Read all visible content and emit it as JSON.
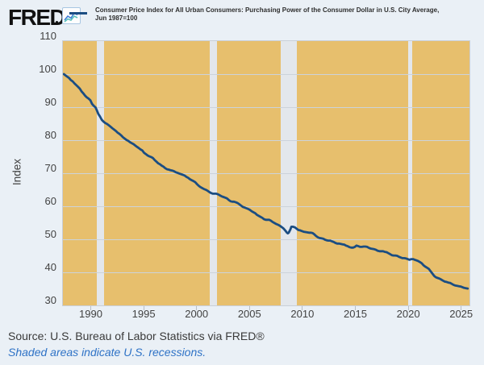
{
  "header": {
    "logo_text": "FRED",
    "series_title_line1": "Consumer Price Index for All Urban Consumers: Purchasing Power of the Consumer Dollar in U.S. City Average,",
    "series_title_line2": "Jun 1987=100"
  },
  "footer": {
    "source_text": "Source: U.S. Bureau of Labor Statistics via FRED®",
    "recession_note": "Shaded areas indicate U.S. recessions."
  },
  "chart_data": {
    "type": "line",
    "title": "Consumer Price Index for All Urban Consumers: Purchasing Power of the Consumer Dollar in U.S. City Average, Jun 1987=100",
    "ylabel": "Index",
    "xlim": [
      1987.33,
      2025.75
    ],
    "ylim": [
      30,
      110
    ],
    "yticks": [
      110,
      100,
      90,
      80,
      70,
      60,
      50,
      40,
      30
    ],
    "gridline_values": [
      100,
      90,
      80,
      70,
      60,
      50,
      40
    ],
    "xticks": [
      1990,
      1995,
      2000,
      2005,
      2010,
      2015,
      2020,
      2025
    ],
    "grid": "horizontal-only",
    "legend_position": "top",
    "recessions": [
      [
        1990.54,
        1991.25
      ],
      [
        2001.17,
        2001.87
      ],
      [
        2007.92,
        2009.46
      ],
      [
        2019.95,
        2020.35
      ]
    ],
    "colors": {
      "line": "#1b4d82",
      "plot_bg": "#e7bf6d",
      "recession_band": "#e3e7ec",
      "gridline": "#ccd3db",
      "page_bg": "#eaf0f6",
      "note_blue": "#2e72c6"
    },
    "series": [
      {
        "name": "Consumer Price Index for All Urban Consumers: Purchasing Power of the Consumer Dollar in U.S. City Average, Jun 1987=100",
        "color": "#1b4d82",
        "points": [
          [
            1987.42,
            100
          ],
          [
            1987.58,
            99.6
          ],
          [
            1987.75,
            99.2
          ],
          [
            1987.92,
            98.8
          ],
          [
            1988.08,
            98.2
          ],
          [
            1988.25,
            97.8
          ],
          [
            1988.42,
            97.2
          ],
          [
            1988.58,
            96.7
          ],
          [
            1988.75,
            96.2
          ],
          [
            1988.92,
            95.6
          ],
          [
            1989.08,
            94.8
          ],
          [
            1989.25,
            94.2
          ],
          [
            1989.42,
            93.5
          ],
          [
            1989.58,
            93.0
          ],
          [
            1989.75,
            92.6
          ],
          [
            1989.92,
            92.1
          ],
          [
            1990.08,
            91.0
          ],
          [
            1990.25,
            90.4
          ],
          [
            1990.42,
            89.9
          ],
          [
            1990.54,
            89.0
          ],
          [
            1990.67,
            88.0
          ],
          [
            1990.83,
            87.2
          ],
          [
            1991.0,
            86.2
          ],
          [
            1991.17,
            85.6
          ],
          [
            1991.33,
            85.2
          ],
          [
            1991.5,
            84.9
          ],
          [
            1991.67,
            84.5
          ],
          [
            1991.83,
            84.1
          ],
          [
            1992.0,
            83.6
          ],
          [
            1992.17,
            83.2
          ],
          [
            1992.33,
            82.8
          ],
          [
            1992.5,
            82.3
          ],
          [
            1992.67,
            81.9
          ],
          [
            1992.83,
            81.5
          ],
          [
            1993.0,
            80.9
          ],
          [
            1993.17,
            80.5
          ],
          [
            1993.33,
            80.1
          ],
          [
            1993.5,
            79.8
          ],
          [
            1993.67,
            79.4
          ],
          [
            1993.83,
            79.1
          ],
          [
            1994.0,
            78.8
          ],
          [
            1994.17,
            78.4
          ],
          [
            1994.33,
            78.0
          ],
          [
            1994.5,
            77.6
          ],
          [
            1994.67,
            77.2
          ],
          [
            1994.83,
            76.9
          ],
          [
            1995.0,
            76.2
          ],
          [
            1995.17,
            75.8
          ],
          [
            1995.33,
            75.4
          ],
          [
            1995.5,
            75.1
          ],
          [
            1995.67,
            74.9
          ],
          [
            1995.83,
            74.6
          ],
          [
            1996.0,
            74.0
          ],
          [
            1996.17,
            73.5
          ],
          [
            1996.33,
            73.0
          ],
          [
            1996.5,
            72.7
          ],
          [
            1996.67,
            72.3
          ],
          [
            1996.83,
            72.0
          ],
          [
            1997.0,
            71.5
          ],
          [
            1997.17,
            71.2
          ],
          [
            1997.33,
            71.1
          ],
          [
            1997.5,
            70.9
          ],
          [
            1997.67,
            70.8
          ],
          [
            1997.83,
            70.6
          ],
          [
            1998.0,
            70.3
          ],
          [
            1998.17,
            70.1
          ],
          [
            1998.33,
            69.9
          ],
          [
            1998.5,
            69.7
          ],
          [
            1998.67,
            69.5
          ],
          [
            1998.83,
            69.3
          ],
          [
            1999.0,
            68.9
          ],
          [
            1999.17,
            68.6
          ],
          [
            1999.33,
            68.2
          ],
          [
            1999.5,
            67.9
          ],
          [
            1999.67,
            67.6
          ],
          [
            1999.83,
            67.3
          ],
          [
            2000.0,
            66.7
          ],
          [
            2000.17,
            66.2
          ],
          [
            2000.33,
            65.8
          ],
          [
            2000.5,
            65.5
          ],
          [
            2000.67,
            65.2
          ],
          [
            2000.83,
            65.0
          ],
          [
            2001.0,
            64.7
          ],
          [
            2001.17,
            64.3
          ],
          [
            2001.33,
            64.0
          ],
          [
            2001.5,
            63.8
          ],
          [
            2001.67,
            63.8
          ],
          [
            2001.83,
            63.8
          ],
          [
            2002.0,
            63.6
          ],
          [
            2002.17,
            63.3
          ],
          [
            2002.33,
            63.0
          ],
          [
            2002.5,
            62.8
          ],
          [
            2002.67,
            62.6
          ],
          [
            2002.83,
            62.4
          ],
          [
            2003.0,
            61.9
          ],
          [
            2003.17,
            61.5
          ],
          [
            2003.33,
            61.4
          ],
          [
            2003.5,
            61.4
          ],
          [
            2003.67,
            61.2
          ],
          [
            2003.83,
            61.0
          ],
          [
            2004.0,
            60.6
          ],
          [
            2004.17,
            60.2
          ],
          [
            2004.33,
            59.8
          ],
          [
            2004.5,
            59.6
          ],
          [
            2004.67,
            59.4
          ],
          [
            2004.83,
            59.2
          ],
          [
            2005.0,
            58.9
          ],
          [
            2005.17,
            58.5
          ],
          [
            2005.33,
            58.2
          ],
          [
            2005.5,
            57.9
          ],
          [
            2005.67,
            57.4
          ],
          [
            2005.83,
            57.1
          ],
          [
            2006.0,
            56.8
          ],
          [
            2006.17,
            56.5
          ],
          [
            2006.33,
            56.1
          ],
          [
            2006.5,
            55.9
          ],
          [
            2006.67,
            55.9
          ],
          [
            2006.83,
            55.9
          ],
          [
            2007.0,
            55.6
          ],
          [
            2007.17,
            55.2
          ],
          [
            2007.33,
            54.9
          ],
          [
            2007.5,
            54.6
          ],
          [
            2007.67,
            54.4
          ],
          [
            2007.83,
            54.1
          ],
          [
            2008.0,
            53.7
          ],
          [
            2008.17,
            53.3
          ],
          [
            2008.33,
            52.7
          ],
          [
            2008.5,
            52.0
          ],
          [
            2008.58,
            51.8
          ],
          [
            2008.67,
            52.0
          ],
          [
            2008.83,
            53.0
          ],
          [
            2008.92,
            53.8
          ],
          [
            2009.08,
            53.8
          ],
          [
            2009.25,
            53.6
          ],
          [
            2009.42,
            53.2
          ],
          [
            2009.58,
            52.8
          ],
          [
            2009.75,
            52.7
          ],
          [
            2009.92,
            52.5
          ],
          [
            2010.08,
            52.3
          ],
          [
            2010.25,
            52.2
          ],
          [
            2010.42,
            52.1
          ],
          [
            2010.58,
            52.0
          ],
          [
            2010.75,
            52.0
          ],
          [
            2010.92,
            51.9
          ],
          [
            2011.08,
            51.5
          ],
          [
            2011.25,
            51.0
          ],
          [
            2011.42,
            50.6
          ],
          [
            2011.58,
            50.4
          ],
          [
            2011.75,
            50.3
          ],
          [
            2011.92,
            50.2
          ],
          [
            2012.08,
            49.9
          ],
          [
            2012.25,
            49.7
          ],
          [
            2012.42,
            49.6
          ],
          [
            2012.58,
            49.6
          ],
          [
            2012.75,
            49.4
          ],
          [
            2012.92,
            49.2
          ],
          [
            2013.08,
            48.9
          ],
          [
            2013.25,
            48.7
          ],
          [
            2013.42,
            48.7
          ],
          [
            2013.58,
            48.6
          ],
          [
            2013.75,
            48.5
          ],
          [
            2013.92,
            48.4
          ],
          [
            2014.08,
            48.1
          ],
          [
            2014.25,
            47.9
          ],
          [
            2014.42,
            47.6
          ],
          [
            2014.58,
            47.5
          ],
          [
            2014.75,
            47.5
          ],
          [
            2014.92,
            47.7
          ],
          [
            2015.08,
            48.1
          ],
          [
            2015.25,
            47.9
          ],
          [
            2015.42,
            47.7
          ],
          [
            2015.58,
            47.7
          ],
          [
            2015.75,
            47.8
          ],
          [
            2015.92,
            47.8
          ],
          [
            2016.08,
            47.7
          ],
          [
            2016.25,
            47.4
          ],
          [
            2016.42,
            47.2
          ],
          [
            2016.58,
            47.1
          ],
          [
            2016.75,
            47.0
          ],
          [
            2016.92,
            46.8
          ],
          [
            2017.08,
            46.5
          ],
          [
            2017.25,
            46.4
          ],
          [
            2017.42,
            46.4
          ],
          [
            2017.58,
            46.4
          ],
          [
            2017.75,
            46.2
          ],
          [
            2017.92,
            46.1
          ],
          [
            2018.08,
            45.8
          ],
          [
            2018.25,
            45.5
          ],
          [
            2018.42,
            45.2
          ],
          [
            2018.58,
            45.1
          ],
          [
            2018.75,
            45.1
          ],
          [
            2018.92,
            45.0
          ],
          [
            2019.08,
            44.7
          ],
          [
            2019.25,
            44.5
          ],
          [
            2019.42,
            44.3
          ],
          [
            2019.58,
            44.3
          ],
          [
            2019.75,
            44.2
          ],
          [
            2019.92,
            44.0
          ],
          [
            2020.08,
            43.8
          ],
          [
            2020.25,
            44.0
          ],
          [
            2020.42,
            44.0
          ],
          [
            2020.58,
            43.8
          ],
          [
            2020.75,
            43.6
          ],
          [
            2020.92,
            43.4
          ],
          [
            2021.08,
            43.1
          ],
          [
            2021.25,
            42.7
          ],
          [
            2021.42,
            42.1
          ],
          [
            2021.58,
            41.7
          ],
          [
            2021.75,
            41.4
          ],
          [
            2021.92,
            41.0
          ],
          [
            2022.08,
            40.3
          ],
          [
            2022.25,
            39.6
          ],
          [
            2022.42,
            38.9
          ],
          [
            2022.58,
            38.5
          ],
          [
            2022.75,
            38.3
          ],
          [
            2022.92,
            38.1
          ],
          [
            2023.08,
            37.8
          ],
          [
            2023.25,
            37.5
          ],
          [
            2023.42,
            37.2
          ],
          [
            2023.58,
            37.1
          ],
          [
            2023.75,
            36.9
          ],
          [
            2023.92,
            36.8
          ],
          [
            2024.08,
            36.5
          ],
          [
            2024.25,
            36.2
          ],
          [
            2024.42,
            36.0
          ],
          [
            2024.58,
            35.9
          ],
          [
            2024.75,
            35.8
          ],
          [
            2024.92,
            35.7
          ],
          [
            2025.08,
            35.5
          ],
          [
            2025.25,
            35.3
          ],
          [
            2025.42,
            35.2
          ],
          [
            2025.58,
            35.1
          ]
        ]
      }
    ]
  }
}
